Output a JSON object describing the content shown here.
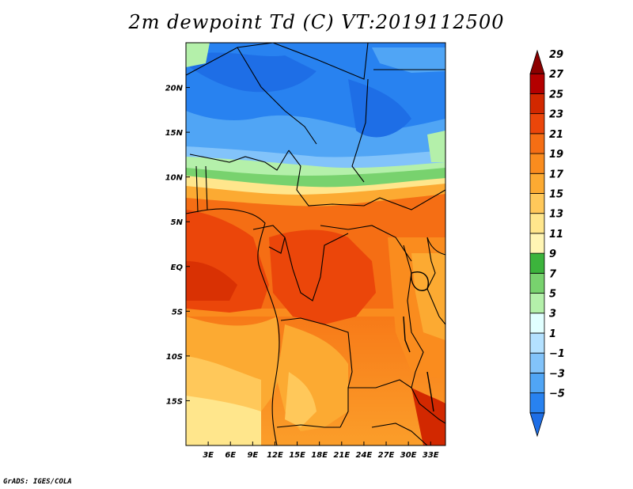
{
  "title": "2m dewpoint Td (C) VT:2019112500",
  "credit": "GrADS: IGES/COLA",
  "map": {
    "lon_range": [
      0,
      35
    ],
    "lat_range": [
      -20,
      25
    ],
    "lon_ticks": [
      {
        "value": 3,
        "label": "3E"
      },
      {
        "value": 6,
        "label": "6E"
      },
      {
        "value": 9,
        "label": "9E"
      },
      {
        "value": 12,
        "label": "12E"
      },
      {
        "value": 15,
        "label": "15E"
      },
      {
        "value": 18,
        "label": "18E"
      },
      {
        "value": 21,
        "label": "21E"
      },
      {
        "value": 24,
        "label": "24E"
      },
      {
        "value": 27,
        "label": "27E"
      },
      {
        "value": 30,
        "label": "30E"
      },
      {
        "value": 33,
        "label": "33E"
      }
    ],
    "lat_ticks": [
      {
        "value": 20,
        "label": "20N"
      },
      {
        "value": 15,
        "label": "15N"
      },
      {
        "value": 10,
        "label": "10N"
      },
      {
        "value": 5,
        "label": "5N"
      },
      {
        "value": 0,
        "label": "EQ"
      },
      {
        "value": -5,
        "label": "5S"
      },
      {
        "value": -10,
        "label": "10S"
      },
      {
        "value": -15,
        "label": "15S"
      }
    ]
  },
  "colorbar": {
    "labels": [
      "29",
      "27",
      "25",
      "23",
      "21",
      "19",
      "17",
      "15",
      "13",
      "11",
      "9",
      "7",
      "5",
      "3",
      "1",
      "−1",
      "−3",
      "−5"
    ],
    "colors": [
      "#1e6ee6",
      "#2882f0",
      "#50a5f5",
      "#82c3fa",
      "#b4e1ff",
      "#e1ffff",
      "#b4f0aa",
      "#78d26e",
      "#3cb43c",
      "#fff5b4",
      "#ffe68c",
      "#ffc85a",
      "#fcaa32",
      "#fa8c1e",
      "#f56e14",
      "#eb460a",
      "#d22800",
      "#b40000",
      "#8c0000"
    ]
  }
}
